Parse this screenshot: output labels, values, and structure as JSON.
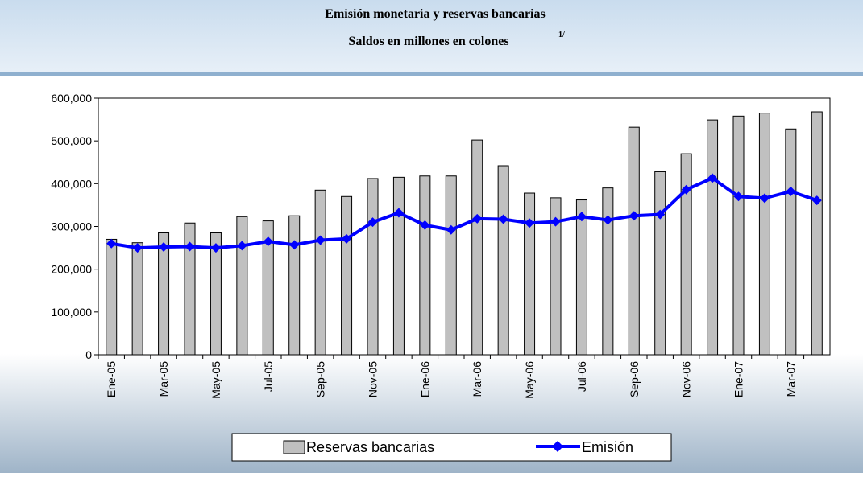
{
  "chart_data": {
    "type": "bar-line",
    "title": "Emisión monetaria y reservas bancarias",
    "subtitle": "Saldos en millones en colones",
    "subtitle_note": "1/",
    "categories": [
      "Ene-05",
      null,
      "Mar-05",
      null,
      "May-05",
      null,
      "Jul-05",
      null,
      "Sep-05",
      null,
      "Nov-05",
      null,
      "Ene-06",
      null,
      "Mar-06",
      null,
      "May-06",
      null,
      "Jul-06",
      null,
      "Sep-06",
      null,
      "Nov-06",
      null,
      "Ene-07",
      null,
      "Mar-07",
      null
    ],
    "series": [
      {
        "name": "Reservas bancarias",
        "type": "bar",
        "color": "#c0c0c0",
        "values": [
          270000,
          262000,
          285000,
          308000,
          285000,
          323000,
          313000,
          325000,
          385000,
          370000,
          412000,
          415000,
          418000,
          418000,
          502000,
          442000,
          378000,
          367000,
          362000,
          390000,
          532000,
          428000,
          470000,
          549000,
          558000,
          565000,
          528000,
          568000
        ]
      },
      {
        "name": "Emisión",
        "type": "line",
        "color": "#0000ff",
        "values": [
          260000,
          250000,
          252000,
          253000,
          250000,
          255000,
          265000,
          257000,
          268000,
          271000,
          310000,
          332000,
          303000,
          292000,
          318000,
          317000,
          308000,
          311000,
          323000,
          315000,
          325000,
          328000,
          386000,
          413000,
          370000,
          366000,
          382000,
          361000
        ]
      }
    ],
    "ylim": [
      0,
      600000
    ],
    "yticks": [
      0,
      {
        "value": 100000,
        "label": "100,000"
      },
      {
        "value": 200000,
        "label": "200,000"
      },
      {
        "value": 300000,
        "label": "300,000"
      },
      {
        "value": 400000,
        "label": "400,000"
      },
      {
        "value": 500000,
        "label": "500,000"
      },
      {
        "value": 600000,
        "label": "600,000"
      }
    ]
  }
}
